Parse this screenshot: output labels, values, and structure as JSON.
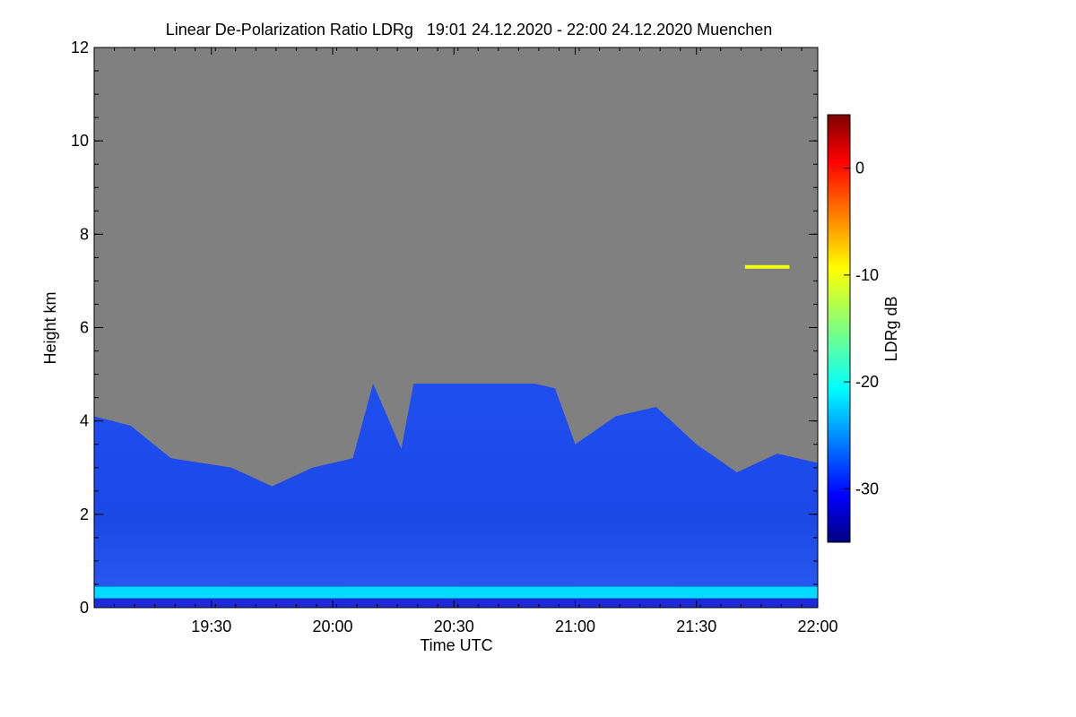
{
  "chart_data": {
    "type": "heatmap",
    "title": "Linear De-Polarization Ratio LDRg   19:01 24.12.2020 - 22:00 24.12.2020 Muenchen",
    "xlabel": "Time UTC",
    "ylabel": "Height km",
    "colorbar_label": "LDRg dB",
    "xlim": [
      "19:01",
      "22:00"
    ],
    "xticks": [
      "19:30",
      "20:00",
      "20:30",
      "21:00",
      "21:30",
      "22:00"
    ],
    "ylim": [
      0,
      12
    ],
    "yticks": [
      0,
      2,
      4,
      6,
      8,
      10,
      12
    ],
    "colorbar_range": [
      -35,
      5
    ],
    "colorbar_ticks": [
      0,
      -10,
      -20,
      -30
    ],
    "no_signal_color": "#808080",
    "cloud_top_km": [
      [
        "19:01",
        4.1
      ],
      [
        "19:10",
        3.9
      ],
      [
        "19:20",
        3.2
      ],
      [
        "19:35",
        3.0
      ],
      [
        "19:45",
        2.6
      ],
      [
        "19:55",
        3.0
      ],
      [
        "20:05",
        3.2
      ],
      [
        "20:10",
        4.8
      ],
      [
        "20:17",
        3.4
      ],
      [
        "20:20",
        4.8
      ],
      [
        "20:35",
        4.8
      ],
      [
        "20:50",
        4.8
      ],
      [
        "20:55",
        4.7
      ],
      [
        "21:00",
        3.5
      ],
      [
        "21:10",
        4.1
      ],
      [
        "21:20",
        4.3
      ],
      [
        "21:30",
        3.5
      ],
      [
        "21:40",
        2.9
      ],
      [
        "21:50",
        3.3
      ],
      [
        "22:00",
        3.1
      ]
    ],
    "features": [
      {
        "name": "boundary layer",
        "height_km": [
          0.2,
          0.45
        ],
        "ldr_db": -22
      },
      {
        "name": "cloud body",
        "height_km": [
          0.5,
          4.8
        ],
        "ldr_db": -32
      },
      {
        "name": "upper layer",
        "time": [
          "21:42",
          "21:53"
        ],
        "height_km": 7.3,
        "ldr_db": -10
      }
    ]
  }
}
